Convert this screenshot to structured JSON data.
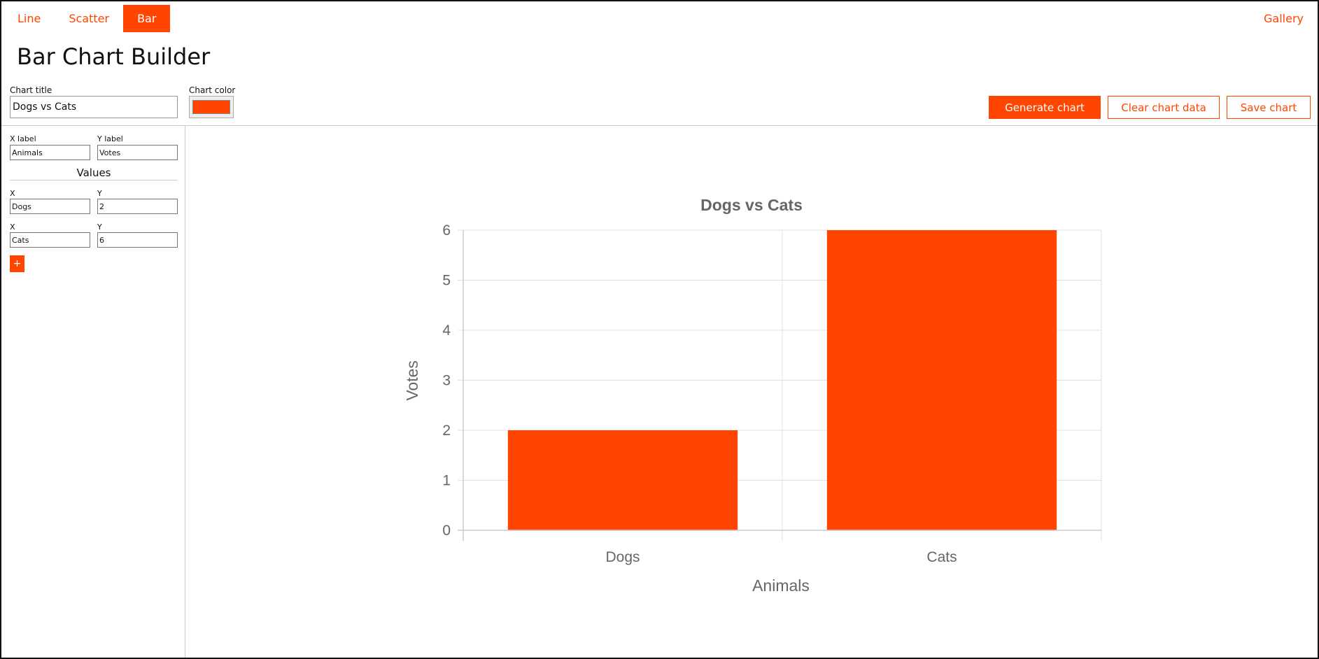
{
  "nav": {
    "tabs": [
      {
        "label": "Line"
      },
      {
        "label": "Scatter"
      },
      {
        "label": "Bar",
        "active": true
      }
    ],
    "gallery_label": "Gallery"
  },
  "page_title": "Bar Chart Builder",
  "form": {
    "chart_title_label": "Chart title",
    "chart_title_value": "Dogs vs Cats",
    "chart_color_label": "Chart color",
    "chart_color": "#ff4500"
  },
  "toolbar": {
    "generate_label": "Generate chart",
    "clear_label": "Clear chart data",
    "save_label": "Save chart"
  },
  "sidebar": {
    "x_label_caption": "X label",
    "x_label_value": "Animals",
    "y_label_caption": "Y label",
    "y_label_value": "Votes",
    "values_heading": "Values",
    "rows": [
      {
        "x_caption": "X",
        "x": "Dogs",
        "y_caption": "Y",
        "y": "2"
      },
      {
        "x_caption": "X",
        "x": "Cats",
        "y_caption": "Y",
        "y": "6"
      }
    ],
    "add_label": "+"
  },
  "chart_data": {
    "type": "bar",
    "title": "Dogs vs Cats",
    "xlabel": "Animals",
    "ylabel": "Votes",
    "categories": [
      "Dogs",
      "Cats"
    ],
    "values": [
      2,
      6
    ],
    "ylim": [
      0,
      6
    ],
    "yticks": [
      0,
      1,
      2,
      3,
      4,
      5,
      6
    ],
    "grid": true,
    "color": "#ff4500"
  }
}
